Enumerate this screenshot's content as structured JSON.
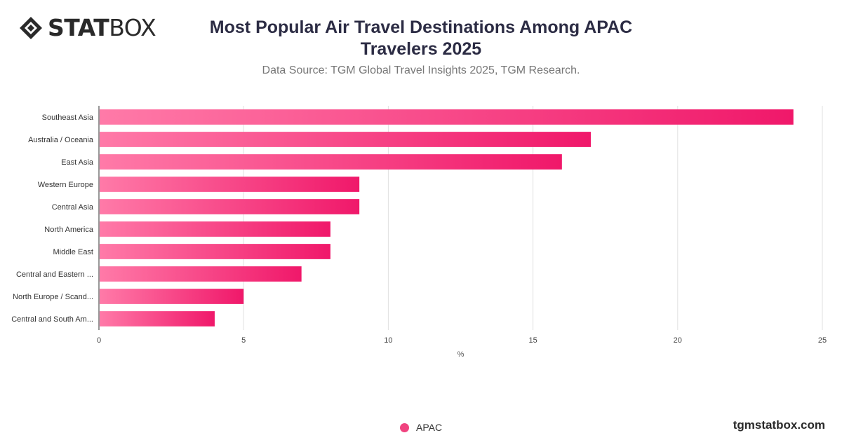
{
  "brand": {
    "logo_bold": "STAT",
    "logo_light": "BOX",
    "footer": "tgmstatbox.com"
  },
  "chart_data": {
    "type": "bar",
    "orientation": "horizontal",
    "title": "Most Popular Air Travel Destinations Among APAC Travelers 2025",
    "subtitle": "Data Source: TGM Global Travel Insights 2025, TGM Research.",
    "categories": [
      "Southeast Asia",
      "Australia / Oceania",
      "East Asia",
      "Western Europe",
      "Central Asia",
      "North America",
      "Middle East",
      "Central and Eastern ...",
      "North Europe / Scand...",
      "Central and South Am..."
    ],
    "series": [
      {
        "name": "APAC",
        "values": [
          24,
          17,
          16,
          9,
          9,
          8,
          8,
          7,
          5,
          4
        ]
      }
    ],
    "xlabel": "%",
    "xlim": [
      0,
      25
    ],
    "xticks": [
      0,
      5,
      10,
      15,
      20,
      25
    ],
    "grid": true,
    "legend_position": "bottom",
    "colors": {
      "bar_start": "#ff7aa8",
      "bar_end": "#f0186a",
      "grid": "#e0e0e0",
      "axis": "#333333"
    }
  }
}
